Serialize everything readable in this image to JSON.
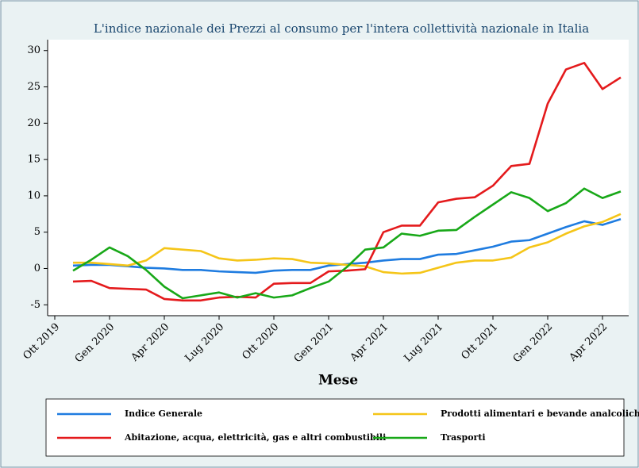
{
  "chart_data": {
    "type": "line",
    "title": "L'indice nazionale dei Prezzi al consumo per l'intera collettività nazionale in Italia",
    "x_label": "Mese",
    "categories": [
      "Ott 2019",
      null,
      null,
      "Gen 2020",
      null,
      null,
      "Apr 2020",
      null,
      null,
      "Lug 2020",
      null,
      null,
      "Ott 2020",
      null,
      null,
      "Gen 2021",
      null,
      null,
      "Apr 2021",
      null,
      null,
      "Lug 2021",
      null,
      null,
      "Ott 2021",
      null,
      null,
      "Gen 2022",
      null,
      null,
      "Apr 2022",
      null
    ],
    "ylim": [
      -6.5,
      31.5
    ],
    "yticks": [
      -5,
      0,
      5,
      10,
      15,
      20,
      25,
      30
    ],
    "grid": false,
    "series": [
      {
        "name": "Indice Generale",
        "color": "#1f7ce0",
        "values": [
          null,
          0.4,
          0.5,
          0.5,
          0.3,
          0.1,
          0.0,
          -0.2,
          -0.2,
          -0.4,
          -0.5,
          -0.6,
          -0.3,
          -0.2,
          -0.2,
          0.4,
          0.6,
          0.8,
          1.1,
          1.3,
          1.3,
          1.9,
          2.0,
          2.5,
          3.0,
          3.7,
          3.9,
          4.8,
          5.7,
          6.5,
          6.0,
          6.8
        ]
      },
      {
        "name": "Prodotti alimentari e bevande analcoliche",
        "color": "#f5c518",
        "values": [
          null,
          0.8,
          0.8,
          0.6,
          0.4,
          1.1,
          2.8,
          2.6,
          2.4,
          1.4,
          1.1,
          1.2,
          1.4,
          1.3,
          0.8,
          0.7,
          0.5,
          0.3,
          -0.5,
          -0.7,
          -0.6,
          0.1,
          0.8,
          1.1,
          1.1,
          1.5,
          2.9,
          3.6,
          4.8,
          5.8,
          6.4,
          7.5
        ]
      },
      {
        "name": "Abitazione, acqua, elettricità, gas e altri combustibili",
        "color": "#e41a1c",
        "values": [
          null,
          -1.8,
          -1.7,
          -2.7,
          -2.8,
          -2.9,
          -4.2,
          -4.4,
          -4.4,
          -4.0,
          -3.9,
          -4.0,
          -2.1,
          -2.0,
          -2.0,
          -0.4,
          -0.3,
          -0.1,
          5.0,
          5.9,
          5.9,
          9.1,
          9.6,
          9.8,
          11.4,
          14.1,
          14.4,
          22.7,
          27.4,
          28.3,
          24.7,
          26.3
        ]
      },
      {
        "name": "Trasporti",
        "color": "#18a818",
        "values": [
          null,
          -0.3,
          1.2,
          2.9,
          1.7,
          -0.2,
          -2.5,
          -4.1,
          -3.7,
          -3.3,
          -4.0,
          -3.4,
          -4.0,
          -3.7,
          -2.7,
          -1.8,
          0.2,
          2.6,
          2.9,
          4.8,
          4.5,
          5.2,
          5.3,
          7.1,
          8.8,
          10.5,
          9.7,
          7.9,
          9.0,
          11.0,
          9.7,
          10.6
        ]
      }
    ]
  }
}
